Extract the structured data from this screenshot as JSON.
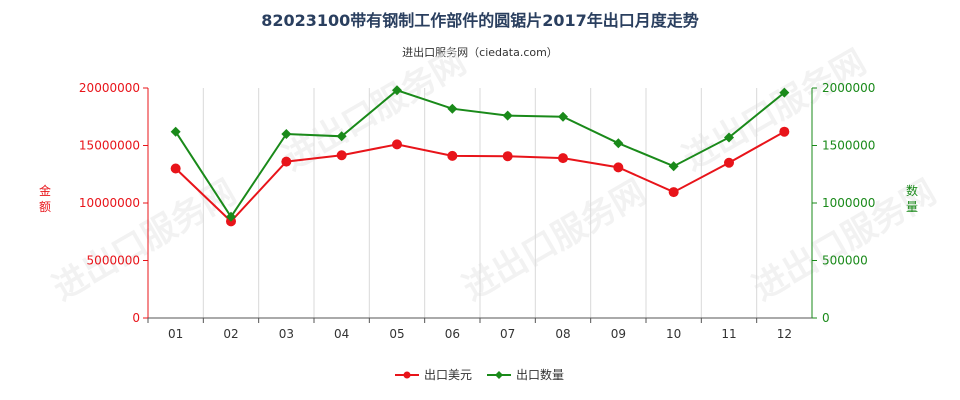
{
  "title": "82023100带有钢制工作部件的圆锯片2017年出口月度走势",
  "subtitle": "进出口服务网（ciedata.com）",
  "watermark": "进出口服务网",
  "chart_data": {
    "type": "line",
    "categories": [
      "01",
      "02",
      "03",
      "04",
      "05",
      "06",
      "07",
      "08",
      "09",
      "10",
      "11",
      "12"
    ],
    "y_left": {
      "label": "金额",
      "range": [
        0,
        20000000
      ],
      "ticks": [
        "0",
        "5000000",
        "10000000",
        "15000000",
        "20000000"
      ],
      "color": "#e8141a"
    },
    "y_right": {
      "label": "数量",
      "range": [
        0,
        2000000
      ],
      "ticks": [
        "0",
        "500000",
        "1000000",
        "1500000",
        "2000000"
      ],
      "color": "#1a8a1a"
    },
    "series": [
      {
        "name": "出口美元",
        "axis": "left",
        "color": "#e8141a",
        "marker": "circle",
        "values": [
          13000000,
          8400000,
          13600000,
          14150000,
          15100000,
          14100000,
          14070000,
          13900000,
          13100000,
          10950000,
          13500000,
          16200000
        ]
      },
      {
        "name": "出口数量",
        "axis": "right",
        "color": "#1a8a1a",
        "marker": "diamond",
        "values": [
          1620000,
          880000,
          1600000,
          1580000,
          1980000,
          1820000,
          1760000,
          1750000,
          1520000,
          1320000,
          1570000,
          1960000
        ]
      }
    ],
    "grid": "vertical",
    "legend_position": "bottom"
  }
}
